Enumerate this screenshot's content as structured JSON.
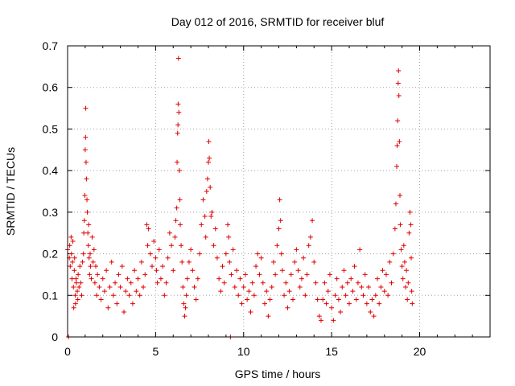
{
  "chart_data": {
    "type": "scatter",
    "title": "Day 012 of 2016, SRMTID for receiver bluf",
    "xlabel": "GPS time / hours",
    "ylabel": "SRMTID / TECUs",
    "xlim": [
      0,
      24
    ],
    "ylim": [
      0,
      0.7
    ],
    "x_ticks": [
      0,
      5,
      10,
      15,
      20
    ],
    "y_ticks": [
      0,
      0.1,
      0.2,
      0.3,
      0.4,
      0.5,
      0.6,
      0.7
    ],
    "x_tick_labels": [
      "0",
      "5",
      "10",
      "15",
      "20"
    ],
    "y_tick_labels": [
      "0",
      "0.1",
      "0.2",
      "0.3",
      "0.4",
      "0.5",
      "0.6",
      "0.7"
    ],
    "grid": true,
    "marker": "+",
    "color": "#e00000",
    "series": [
      {
        "name": "bluf",
        "points": [
          [
            0.0,
            0.21
          ],
          [
            0.05,
            0.0
          ],
          [
            0.1,
            0.19
          ],
          [
            0.12,
            0.22
          ],
          [
            0.15,
            0.17
          ],
          [
            0.2,
            0.24
          ],
          [
            0.22,
            0.2
          ],
          [
            0.25,
            0.14
          ],
          [
            0.28,
            0.18
          ],
          [
            0.3,
            0.23
          ],
          [
            0.33,
            0.12
          ],
          [
            0.35,
            0.07
          ],
          [
            0.38,
            0.16
          ],
          [
            0.4,
            0.19
          ],
          [
            0.43,
            0.1
          ],
          [
            0.45,
            0.08
          ],
          [
            0.48,
            0.14
          ],
          [
            0.5,
            0.13
          ],
          [
            0.55,
            0.11
          ],
          [
            0.58,
            0.09
          ],
          [
            0.6,
            0.15
          ],
          [
            0.65,
            0.12
          ],
          [
            0.7,
            0.17
          ],
          [
            0.75,
            0.13
          ],
          [
            0.8,
            0.1
          ],
          [
            0.85,
            0.18
          ],
          [
            0.9,
            0.2
          ],
          [
            0.92,
            0.25
          ],
          [
            0.95,
            0.28
          ],
          [
            0.98,
            0.34
          ],
          [
            1.0,
            0.45
          ],
          [
            1.02,
            0.48
          ],
          [
            1.03,
            0.55
          ],
          [
            1.05,
            0.42
          ],
          [
            1.07,
            0.38
          ],
          [
            1.1,
            0.33
          ],
          [
            1.12,
            0.3
          ],
          [
            1.15,
            0.25
          ],
          [
            1.18,
            0.22
          ],
          [
            1.2,
            0.27
          ],
          [
            1.22,
            0.19
          ],
          [
            1.25,
            0.15
          ],
          [
            1.28,
            0.2
          ],
          [
            1.3,
            0.17
          ],
          [
            1.35,
            0.14
          ],
          [
            1.4,
            0.24
          ],
          [
            1.45,
            0.18
          ],
          [
            1.5,
            0.21
          ],
          [
            1.55,
            0.13
          ],
          [
            1.6,
            0.17
          ],
          [
            1.65,
            0.1
          ],
          [
            1.7,
            0.15
          ],
          [
            1.8,
            0.12
          ],
          [
            1.9,
            0.09
          ],
          [
            2.0,
            0.14
          ],
          [
            2.1,
            0.11
          ],
          [
            2.2,
            0.16
          ],
          [
            2.3,
            0.07
          ],
          [
            2.4,
            0.12
          ],
          [
            2.5,
            0.18
          ],
          [
            2.6,
            0.1
          ],
          [
            2.7,
            0.13
          ],
          [
            2.8,
            0.08
          ],
          [
            2.9,
            0.15
          ],
          [
            3.0,
            0.12
          ],
          [
            3.1,
            0.17
          ],
          [
            3.2,
            0.06
          ],
          [
            3.3,
            0.11
          ],
          [
            3.4,
            0.14
          ],
          [
            3.5,
            0.1
          ],
          [
            3.6,
            0.13
          ],
          [
            3.7,
            0.08
          ],
          [
            3.8,
            0.16
          ],
          [
            3.9,
            0.11
          ],
          [
            4.0,
            0.14
          ],
          [
            4.1,
            0.1
          ],
          [
            4.2,
            0.18
          ],
          [
            4.3,
            0.12
          ],
          [
            4.4,
            0.15
          ],
          [
            4.5,
            0.27
          ],
          [
            4.55,
            0.22
          ],
          [
            4.6,
            0.26
          ],
          [
            4.7,
            0.2
          ],
          [
            4.8,
            0.17
          ],
          [
            4.9,
            0.23
          ],
          [
            5.0,
            0.19
          ],
          [
            5.05,
            0.16
          ],
          [
            5.1,
            0.13
          ],
          [
            5.2,
            0.21
          ],
          [
            5.3,
            0.14
          ],
          [
            5.4,
            0.17
          ],
          [
            5.5,
            0.1
          ],
          [
            5.6,
            0.13
          ],
          [
            5.7,
            0.19
          ],
          [
            5.8,
            0.25
          ],
          [
            5.9,
            0.22
          ],
          [
            6.0,
            0.16
          ],
          [
            6.1,
            0.24
          ],
          [
            6.15,
            0.28
          ],
          [
            6.2,
            0.31
          ],
          [
            6.22,
            0.42
          ],
          [
            6.25,
            0.49
          ],
          [
            6.27,
            0.51
          ],
          [
            6.28,
            0.56
          ],
          [
            6.3,
            0.67
          ],
          [
            6.32,
            0.54
          ],
          [
            6.35,
            0.4
          ],
          [
            6.38,
            0.33
          ],
          [
            6.4,
            0.27
          ],
          [
            6.45,
            0.22
          ],
          [
            6.5,
            0.18
          ],
          [
            6.55,
            0.12
          ],
          [
            6.6,
            0.08
          ],
          [
            6.65,
            0.05
          ],
          [
            6.7,
            0.07
          ],
          [
            6.75,
            0.1
          ],
          [
            6.8,
            0.14
          ],
          [
            6.9,
            0.18
          ],
          [
            7.0,
            0.21
          ],
          [
            7.1,
            0.16
          ],
          [
            7.2,
            0.12
          ],
          [
            7.3,
            0.09
          ],
          [
            7.4,
            0.14
          ],
          [
            7.5,
            0.2
          ],
          [
            7.6,
            0.27
          ],
          [
            7.7,
            0.33
          ],
          [
            7.8,
            0.29
          ],
          [
            7.85,
            0.24
          ],
          [
            7.9,
            0.35
          ],
          [
            7.95,
            0.38
          ],
          [
            8.0,
            0.42
          ],
          [
            8.02,
            0.47
          ],
          [
            8.05,
            0.43
          ],
          [
            8.1,
            0.36
          ],
          [
            8.15,
            0.29
          ],
          [
            8.2,
            0.3
          ],
          [
            8.3,
            0.22
          ],
          [
            8.4,
            0.26
          ],
          [
            8.5,
            0.19
          ],
          [
            8.6,
            0.14
          ],
          [
            8.7,
            0.11
          ],
          [
            8.8,
            0.17
          ],
          [
            8.9,
            0.13
          ],
          [
            9.0,
            0.2
          ],
          [
            9.1,
            0.27
          ],
          [
            9.15,
            0.24
          ],
          [
            9.2,
            0.18
          ],
          [
            9.25,
            0.0
          ],
          [
            9.3,
            0.15
          ],
          [
            9.4,
            0.21
          ],
          [
            9.5,
            0.12
          ],
          [
            9.6,
            0.16
          ],
          [
            9.7,
            0.1
          ],
          [
            9.8,
            0.14
          ],
          [
            9.9,
            0.08
          ],
          [
            10.0,
            0.12
          ],
          [
            10.1,
            0.15
          ],
          [
            10.2,
            0.09
          ],
          [
            10.3,
            0.11
          ],
          [
            10.4,
            0.06
          ],
          [
            10.5,
            0.13
          ],
          [
            10.6,
            0.1
          ],
          [
            10.7,
            0.17
          ],
          [
            10.8,
            0.2
          ],
          [
            10.9,
            0.15
          ],
          [
            11.0,
            0.19
          ],
          [
            11.1,
            0.13
          ],
          [
            11.2,
            0.08
          ],
          [
            11.3,
            0.11
          ],
          [
            11.4,
            0.05
          ],
          [
            11.5,
            0.09
          ],
          [
            11.6,
            0.12
          ],
          [
            11.7,
            0.18
          ],
          [
            11.8,
            0.15
          ],
          [
            11.9,
            0.22
          ],
          [
            12.0,
            0.26
          ],
          [
            12.05,
            0.33
          ],
          [
            12.1,
            0.28
          ],
          [
            12.15,
            0.2
          ],
          [
            12.2,
            0.16
          ],
          [
            12.3,
            0.1
          ],
          [
            12.4,
            0.13
          ],
          [
            12.5,
            0.07
          ],
          [
            12.6,
            0.11
          ],
          [
            12.7,
            0.15
          ],
          [
            12.8,
            0.09
          ],
          [
            12.9,
            0.18
          ],
          [
            13.0,
            0.21
          ],
          [
            13.1,
            0.16
          ],
          [
            13.2,
            0.12
          ],
          [
            13.3,
            0.14
          ],
          [
            13.4,
            0.19
          ],
          [
            13.5,
            0.1
          ],
          [
            13.6,
            0.15
          ],
          [
            13.7,
            0.22
          ],
          [
            13.8,
            0.24
          ],
          [
            13.9,
            0.28
          ],
          [
            14.0,
            0.18
          ],
          [
            14.1,
            0.13
          ],
          [
            14.2,
            0.09
          ],
          [
            14.3,
            0.05
          ],
          [
            14.4,
            0.04
          ],
          [
            14.5,
            0.09
          ],
          [
            14.6,
            0.13
          ],
          [
            14.7,
            0.08
          ],
          [
            14.8,
            0.11
          ],
          [
            14.9,
            0.15
          ],
          [
            15.0,
            0.07
          ],
          [
            15.1,
            0.04
          ],
          [
            15.2,
            0.1
          ],
          [
            15.3,
            0.14
          ],
          [
            15.4,
            0.09
          ],
          [
            15.5,
            0.06
          ],
          [
            15.6,
            0.12
          ],
          [
            15.7,
            0.16
          ],
          [
            15.8,
            0.1
          ],
          [
            15.9,
            0.13
          ],
          [
            16.0,
            0.08
          ],
          [
            16.1,
            0.14
          ],
          [
            16.2,
            0.11
          ],
          [
            16.3,
            0.17
          ],
          [
            16.4,
            0.09
          ],
          [
            16.5,
            0.13
          ],
          [
            16.6,
            0.21
          ],
          [
            16.7,
            0.12
          ],
          [
            16.8,
            0.1
          ],
          [
            16.9,
            0.15
          ],
          [
            17.0,
            0.08
          ],
          [
            17.1,
            0.12
          ],
          [
            17.2,
            0.06
          ],
          [
            17.3,
            0.09
          ],
          [
            17.4,
            0.05
          ],
          [
            17.5,
            0.1
          ],
          [
            17.6,
            0.14
          ],
          [
            17.7,
            0.08
          ],
          [
            17.8,
            0.12
          ],
          [
            17.9,
            0.16
          ],
          [
            18.0,
            0.11
          ],
          [
            18.1,
            0.15
          ],
          [
            18.2,
            0.1
          ],
          [
            18.3,
            0.18
          ],
          [
            18.4,
            0.13
          ],
          [
            18.5,
            0.2
          ],
          [
            18.6,
            0.26
          ],
          [
            18.65,
            0.32
          ],
          [
            18.7,
            0.41
          ],
          [
            18.72,
            0.46
          ],
          [
            18.75,
            0.52
          ],
          [
            18.78,
            0.61
          ],
          [
            18.8,
            0.64
          ],
          [
            18.82,
            0.58
          ],
          [
            18.85,
            0.47
          ],
          [
            18.88,
            0.34
          ],
          [
            18.9,
            0.27
          ],
          [
            18.95,
            0.21
          ],
          [
            19.0,
            0.17
          ],
          [
            19.05,
            0.14
          ],
          [
            19.1,
            0.22
          ],
          [
            19.15,
            0.18
          ],
          [
            19.2,
            0.12
          ],
          [
            19.25,
            0.16
          ],
          [
            19.3,
            0.09
          ],
          [
            19.35,
            0.13
          ],
          [
            19.4,
            0.25
          ],
          [
            19.45,
            0.3
          ],
          [
            19.5,
            0.27
          ],
          [
            19.52,
            0.19
          ],
          [
            19.55,
            0.11
          ],
          [
            19.58,
            0.08
          ]
        ]
      }
    ]
  }
}
